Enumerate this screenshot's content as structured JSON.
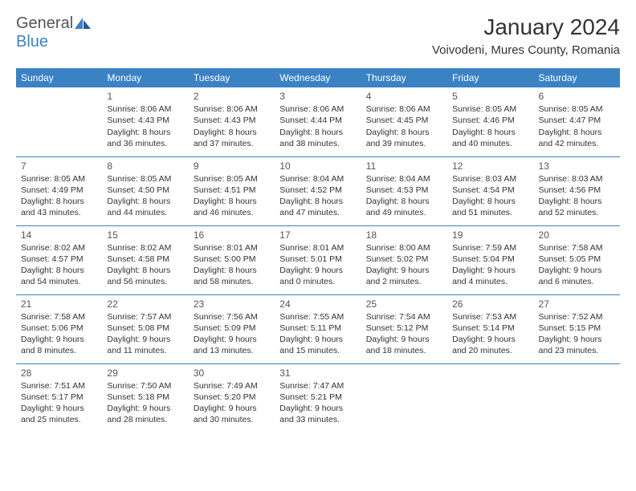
{
  "logo": {
    "part1": "General",
    "part2": "Blue"
  },
  "title": "January 2024",
  "location": "Voivodeni, Mures County, Romania",
  "header_bg": "#3b82c4",
  "header_text_color": "#ffffff",
  "border_color": "#3b82c4",
  "day_headers": [
    "Sunday",
    "Monday",
    "Tuesday",
    "Wednesday",
    "Thursday",
    "Friday",
    "Saturday"
  ],
  "weeks": [
    [
      null,
      {
        "n": "1",
        "sr": "8:06 AM",
        "ss": "4:43 PM",
        "dl": "8 hours and 36 minutes."
      },
      {
        "n": "2",
        "sr": "8:06 AM",
        "ss": "4:43 PM",
        "dl": "8 hours and 37 minutes."
      },
      {
        "n": "3",
        "sr": "8:06 AM",
        "ss": "4:44 PM",
        "dl": "8 hours and 38 minutes."
      },
      {
        "n": "4",
        "sr": "8:06 AM",
        "ss": "4:45 PM",
        "dl": "8 hours and 39 minutes."
      },
      {
        "n": "5",
        "sr": "8:05 AM",
        "ss": "4:46 PM",
        "dl": "8 hours and 40 minutes."
      },
      {
        "n": "6",
        "sr": "8:05 AM",
        "ss": "4:47 PM",
        "dl": "8 hours and 42 minutes."
      }
    ],
    [
      {
        "n": "7",
        "sr": "8:05 AM",
        "ss": "4:49 PM",
        "dl": "8 hours and 43 minutes."
      },
      {
        "n": "8",
        "sr": "8:05 AM",
        "ss": "4:50 PM",
        "dl": "8 hours and 44 minutes."
      },
      {
        "n": "9",
        "sr": "8:05 AM",
        "ss": "4:51 PM",
        "dl": "8 hours and 46 minutes."
      },
      {
        "n": "10",
        "sr": "8:04 AM",
        "ss": "4:52 PM",
        "dl": "8 hours and 47 minutes."
      },
      {
        "n": "11",
        "sr": "8:04 AM",
        "ss": "4:53 PM",
        "dl": "8 hours and 49 minutes."
      },
      {
        "n": "12",
        "sr": "8:03 AM",
        "ss": "4:54 PM",
        "dl": "8 hours and 51 minutes."
      },
      {
        "n": "13",
        "sr": "8:03 AM",
        "ss": "4:56 PM",
        "dl": "8 hours and 52 minutes."
      }
    ],
    [
      {
        "n": "14",
        "sr": "8:02 AM",
        "ss": "4:57 PM",
        "dl": "8 hours and 54 minutes."
      },
      {
        "n": "15",
        "sr": "8:02 AM",
        "ss": "4:58 PM",
        "dl": "8 hours and 56 minutes."
      },
      {
        "n": "16",
        "sr": "8:01 AM",
        "ss": "5:00 PM",
        "dl": "8 hours and 58 minutes."
      },
      {
        "n": "17",
        "sr": "8:01 AM",
        "ss": "5:01 PM",
        "dl": "9 hours and 0 minutes."
      },
      {
        "n": "18",
        "sr": "8:00 AM",
        "ss": "5:02 PM",
        "dl": "9 hours and 2 minutes."
      },
      {
        "n": "19",
        "sr": "7:59 AM",
        "ss": "5:04 PM",
        "dl": "9 hours and 4 minutes."
      },
      {
        "n": "20",
        "sr": "7:58 AM",
        "ss": "5:05 PM",
        "dl": "9 hours and 6 minutes."
      }
    ],
    [
      {
        "n": "21",
        "sr": "7:58 AM",
        "ss": "5:06 PM",
        "dl": "9 hours and 8 minutes."
      },
      {
        "n": "22",
        "sr": "7:57 AM",
        "ss": "5:08 PM",
        "dl": "9 hours and 11 minutes."
      },
      {
        "n": "23",
        "sr": "7:56 AM",
        "ss": "5:09 PM",
        "dl": "9 hours and 13 minutes."
      },
      {
        "n": "24",
        "sr": "7:55 AM",
        "ss": "5:11 PM",
        "dl": "9 hours and 15 minutes."
      },
      {
        "n": "25",
        "sr": "7:54 AM",
        "ss": "5:12 PM",
        "dl": "9 hours and 18 minutes."
      },
      {
        "n": "26",
        "sr": "7:53 AM",
        "ss": "5:14 PM",
        "dl": "9 hours and 20 minutes."
      },
      {
        "n": "27",
        "sr": "7:52 AM",
        "ss": "5:15 PM",
        "dl": "9 hours and 23 minutes."
      }
    ],
    [
      {
        "n": "28",
        "sr": "7:51 AM",
        "ss": "5:17 PM",
        "dl": "9 hours and 25 minutes."
      },
      {
        "n": "29",
        "sr": "7:50 AM",
        "ss": "5:18 PM",
        "dl": "9 hours and 28 minutes."
      },
      {
        "n": "30",
        "sr": "7:49 AM",
        "ss": "5:20 PM",
        "dl": "9 hours and 30 minutes."
      },
      {
        "n": "31",
        "sr": "7:47 AM",
        "ss": "5:21 PM",
        "dl": "9 hours and 33 minutes."
      },
      null,
      null,
      null
    ]
  ],
  "labels": {
    "sunrise": "Sunrise:",
    "sunset": "Sunset:",
    "daylight": "Daylight:"
  }
}
